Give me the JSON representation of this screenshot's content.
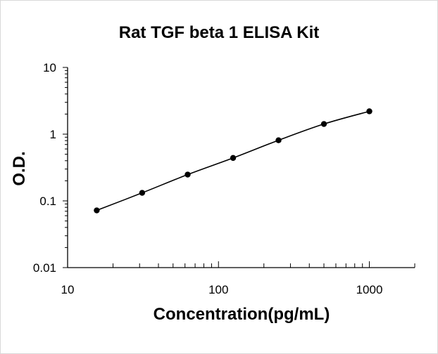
{
  "chart_data": {
    "type": "scatter",
    "title": "Rat TGF beta 1 ELISA Kit",
    "xlabel": "Concentration(pg/mL)",
    "ylabel": "O.D.",
    "x_scale": "log",
    "y_scale": "log",
    "xlim": [
      10,
      2000
    ],
    "ylim": [
      0.01,
      10
    ],
    "x_ticks": [
      {
        "value": 10,
        "label": "10"
      },
      {
        "value": 100,
        "label": "100"
      },
      {
        "value": 1000,
        "label": "1000"
      }
    ],
    "y_ticks": [
      {
        "value": 0.01,
        "label": "0.01"
      },
      {
        "value": 0.1,
        "label": "0.1"
      },
      {
        "value": 1,
        "label": "1"
      },
      {
        "value": 10,
        "label": "10"
      }
    ],
    "grid": false,
    "legend": "none",
    "series": [
      {
        "x": [
          15.6,
          31.2,
          62.5,
          125,
          250,
          500,
          1000
        ],
        "y": [
          0.072,
          0.132,
          0.248,
          0.44,
          0.81,
          1.42,
          2.2
        ],
        "marker": "circle",
        "line": "smooth",
        "color": "#000000"
      }
    ]
  }
}
